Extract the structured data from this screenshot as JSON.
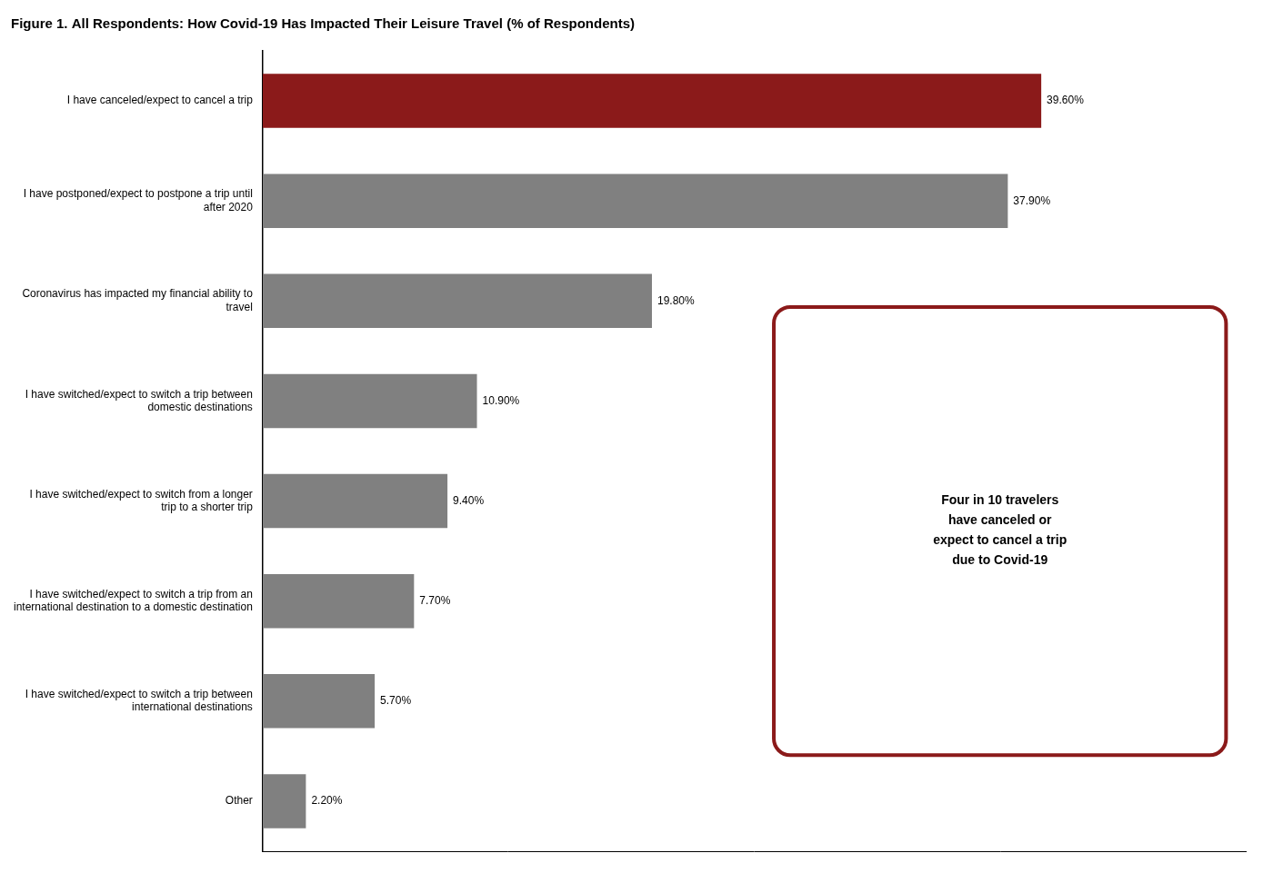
{
  "chart_data": {
    "type": "bar",
    "orientation": "horizontal",
    "title": "Figure 1. All Respondents: How Covid-19 Has Impacted Their Leisure Travel (% of Respondents)",
    "categories": [
      "Other",
      "I have switched/expect to switch a trip between\ninternational destinations",
      "I have switched/expect to switch a trip from an\ninternational destination to a domestic destination",
      "I have switched/expect to switch from a longer\ntrip to a shorter trip",
      "I have switched/expect to switch a trip between\ndomestic destinations",
      "Coronavirus has impacted my financial ability to\ntravel",
      "I have postponed/expect to postpone a trip until\nafter 2020",
      "I have canceled/expect to cancel a trip"
    ],
    "values": [
      2.2,
      5.7,
      7.7,
      9.4,
      10.9,
      19.8,
      37.9,
      39.6
    ],
    "value_labels": [
      "2.20%",
      "5.70%",
      "7.70%",
      "9.40%",
      "10.90%",
      "19.80%",
      "37.90%",
      "39.60%"
    ],
    "colors": [
      "#808080",
      "#808080",
      "#808080",
      "#808080",
      "#808080",
      "#808080",
      "#808080",
      "#8B1A1A"
    ],
    "xlim": [
      0,
      50
    ],
    "grid": false,
    "data_labels": true,
    "tick_labels": "y",
    "annotations": [
      {
        "text": "Four in 10 travelers\nhave canceled or\nexpect to cancel a trip\ndue to Covid-19",
        "color": "#8B1A1A"
      }
    ]
  }
}
